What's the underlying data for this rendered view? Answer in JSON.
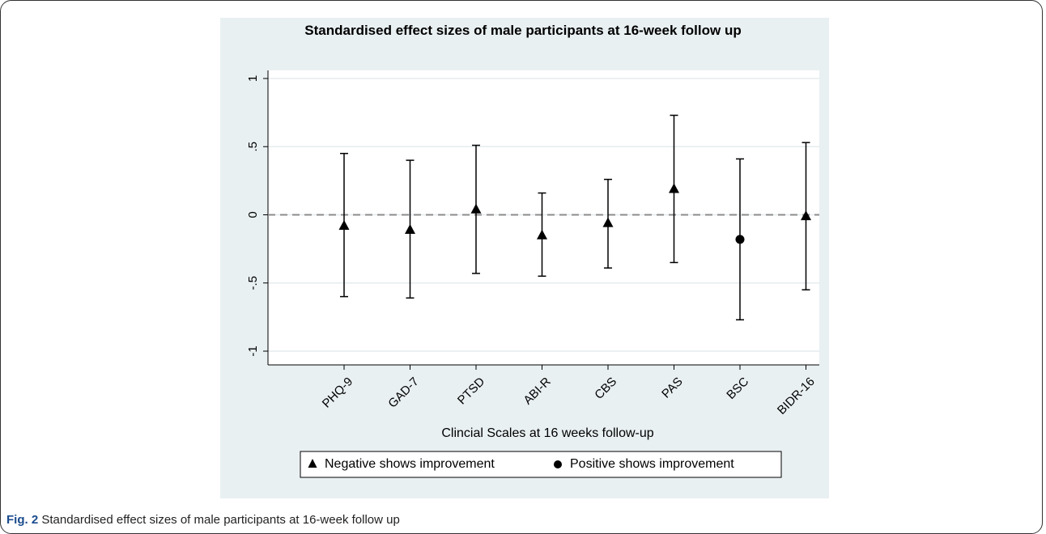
{
  "chart_data": {
    "type": "scatter",
    "title": "Standardised effect sizes of male participants at 16-week follow up",
    "xlabel": "Clincial Scales at 16 weeks follow-up",
    "ylabel": "",
    "categories": [
      "PHQ-9",
      "GAD-7",
      "PTSD",
      "ABI-R",
      "CBS",
      "PAS",
      "BSC",
      "BIDR-16"
    ],
    "values": [
      -0.08,
      -0.11,
      0.04,
      -0.15,
      -0.06,
      0.19,
      -0.18,
      -0.01
    ],
    "ci_lower": [
      -0.6,
      -0.61,
      -0.43,
      -0.45,
      -0.39,
      -0.35,
      -0.77,
      -0.55
    ],
    "ci_upper": [
      0.45,
      0.4,
      0.51,
      0.16,
      0.26,
      0.73,
      0.41,
      0.53
    ],
    "markers": [
      "triangle",
      "triangle",
      "triangle",
      "triangle",
      "triangle",
      "triangle",
      "circle",
      "triangle"
    ],
    "ylim": [
      -1,
      1
    ],
    "yticks": [
      1,
      0.5,
      0,
      -0.5,
      -1
    ],
    "ytick_labels": [
      "1",
      ".5",
      "0",
      "-.5",
      "-1"
    ],
    "reference_line": 0,
    "grid": true,
    "legend": {
      "placement": "bottom",
      "entries": [
        {
          "marker": "triangle",
          "label": "Negative shows improvement"
        },
        {
          "marker": "circle",
          "label": "Positive shows improvement"
        }
      ]
    }
  },
  "caption": {
    "label": "Fig. 2",
    "text": "Standardised effect sizes of male participants at 16-week follow up"
  },
  "colors": {
    "panel_bg": "#e9f0f2",
    "plot_bg": "#ffffff",
    "marker": "#000000",
    "reference_line": "#8c8c8c",
    "caption_label": "#1a4b8c"
  }
}
